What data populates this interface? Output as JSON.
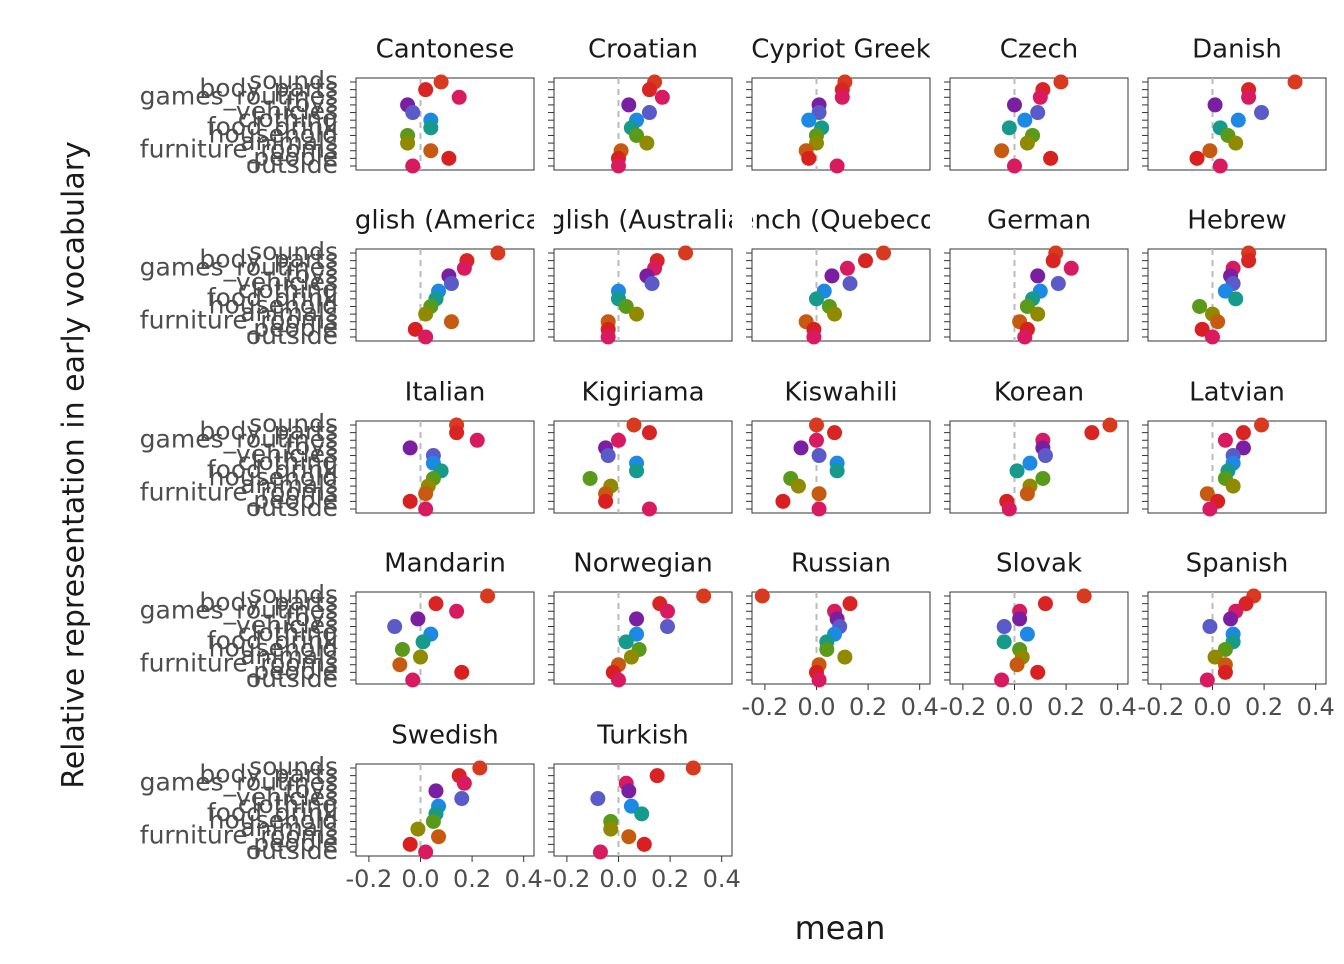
{
  "chart_data": {
    "type": "dot",
    "xlabel": "mean",
    "ylabel": "Relative representation in early vocabulary",
    "categories": [
      "sounds",
      "body_parts",
      "games_routines",
      "toys",
      "vehicles",
      "clothing",
      "food_drink",
      "household",
      "animals",
      "furniture_rooms",
      "people",
      "outside"
    ],
    "colors": [
      "#d73a1e",
      "#d92424",
      "#d81b60",
      "#7b1fa2",
      "#5a5ac8",
      "#1e88e5",
      "#159a8c",
      "#5a9a1a",
      "#8f8a00",
      "#c65a10",
      "#d92020",
      "#d81b60"
    ],
    "xlim": [
      -0.25,
      0.44
    ],
    "xticks": [
      -0.2,
      {
        "value": 0,
        "label": "0.0"
      },
      0.2,
      0.4
    ],
    "reference_line": 0,
    "panels": [
      {
        "title": "Cantonese",
        "values": [
          0.08,
          0.02,
          0.15,
          -0.05,
          -0.03,
          0.04,
          0.04,
          -0.05,
          -0.05,
          0.04,
          0.11,
          -0.03
        ]
      },
      {
        "title": "Croatian",
        "values": [
          0.14,
          0.12,
          0.17,
          0.04,
          0.12,
          0.07,
          0.05,
          0.07,
          0.11,
          0.01,
          0.0,
          0.0
        ]
      },
      {
        "title": "Cypriot Greek",
        "values": [
          0.11,
          0.1,
          0.1,
          0.01,
          0.01,
          -0.03,
          0.02,
          0.0,
          0.0,
          -0.04,
          -0.03,
          0.08
        ]
      },
      {
        "title": "Czech",
        "values": [
          0.18,
          0.11,
          0.1,
          0.0,
          0.09,
          0.04,
          -0.02,
          0.07,
          0.05,
          -0.05,
          0.14,
          0.0
        ]
      },
      {
        "title": "Danish",
        "values": [
          0.32,
          0.14,
          0.14,
          0.01,
          0.19,
          0.1,
          0.03,
          0.06,
          0.09,
          -0.01,
          -0.06,
          0.03
        ]
      },
      {
        "title": "English (American)",
        "values": [
          0.3,
          0.18,
          0.17,
          0.11,
          0.12,
          0.07,
          0.06,
          0.04,
          0.02,
          0.12,
          -0.02,
          0.02
        ]
      },
      {
        "title": "English (Australian)",
        "values": [
          0.26,
          0.15,
          0.14,
          0.11,
          0.13,
          0.0,
          0.0,
          0.03,
          0.07,
          -0.04,
          -0.04,
          -0.04
        ]
      },
      {
        "title": "French (Quebecois)",
        "values": [
          0.26,
          0.19,
          0.12,
          0.06,
          0.13,
          0.03,
          0.0,
          0.05,
          0.07,
          -0.04,
          -0.01,
          -0.01
        ]
      },
      {
        "title": "German",
        "values": [
          0.16,
          0.15,
          0.22,
          0.09,
          0.17,
          0.1,
          0.07,
          0.05,
          0.09,
          0.02,
          0.05,
          0.04
        ]
      },
      {
        "title": "Hebrew",
        "values": [
          0.14,
          0.14,
          0.08,
          0.07,
          0.08,
          0.05,
          0.09,
          -0.05,
          0.0,
          0.02,
          -0.04,
          0.0
        ]
      },
      {
        "title": "Italian",
        "values": [
          0.14,
          0.14,
          0.22,
          -0.04,
          0.05,
          0.05,
          0.08,
          0.05,
          0.03,
          0.02,
          -0.04,
          0.02
        ]
      },
      {
        "title": "Kigiriama",
        "values": [
          0.06,
          0.12,
          0.0,
          -0.05,
          -0.04,
          0.07,
          0.07,
          -0.11,
          -0.03,
          -0.05,
          -0.05,
          0.12
        ]
      },
      {
        "title": "Kiswahili",
        "values": [
          0.0,
          0.07,
          0.0,
          -0.06,
          0.01,
          0.08,
          0.08,
          -0.1,
          -0.07,
          0.01,
          -0.13,
          0.01
        ]
      },
      {
        "title": "Korean",
        "values": [
          0.37,
          0.3,
          0.11,
          0.11,
          0.12,
          0.06,
          0.01,
          0.11,
          0.06,
          0.05,
          -0.03,
          -0.02
        ]
      },
      {
        "title": "Latvian",
        "values": [
          0.19,
          0.12,
          0.05,
          0.12,
          0.08,
          0.08,
          0.06,
          0.05,
          0.08,
          -0.02,
          0.02,
          -0.01
        ]
      },
      {
        "title": "Mandarin",
        "values": [
          0.26,
          0.06,
          0.14,
          -0.01,
          -0.1,
          0.04,
          0.01,
          -0.07,
          0.0,
          -0.08,
          0.16,
          -0.03
        ]
      },
      {
        "title": "Norwegian",
        "values": [
          0.33,
          0.16,
          0.19,
          0.07,
          0.19,
          0.07,
          0.03,
          0.08,
          0.05,
          0.0,
          -0.02,
          0.0
        ]
      },
      {
        "title": "Russian",
        "values": [
          -0.21,
          0.13,
          0.07,
          0.08,
          0.09,
          0.07,
          0.04,
          0.04,
          0.11,
          0.01,
          0.0,
          0.01
        ]
      },
      {
        "title": "Slovak",
        "values": [
          0.27,
          0.12,
          0.02,
          0.02,
          -0.04,
          0.05,
          -0.04,
          0.02,
          0.03,
          0.01,
          0.09,
          -0.05
        ]
      },
      {
        "title": "Spanish",
        "values": [
          0.16,
          0.13,
          0.09,
          0.07,
          -0.01,
          0.08,
          0.08,
          0.05,
          0.01,
          0.05,
          0.05,
          -0.02
        ]
      },
      {
        "title": "Swedish",
        "values": [
          0.23,
          0.15,
          0.17,
          0.06,
          0.16,
          0.07,
          0.06,
          0.05,
          -0.01,
          0.07,
          -0.04,
          0.02
        ]
      },
      {
        "title": "Turkish",
        "values": [
          0.29,
          0.15,
          0.03,
          0.04,
          -0.08,
          0.05,
          0.09,
          -0.03,
          -0.03,
          0.04,
          0.1,
          -0.07
        ]
      }
    ]
  }
}
